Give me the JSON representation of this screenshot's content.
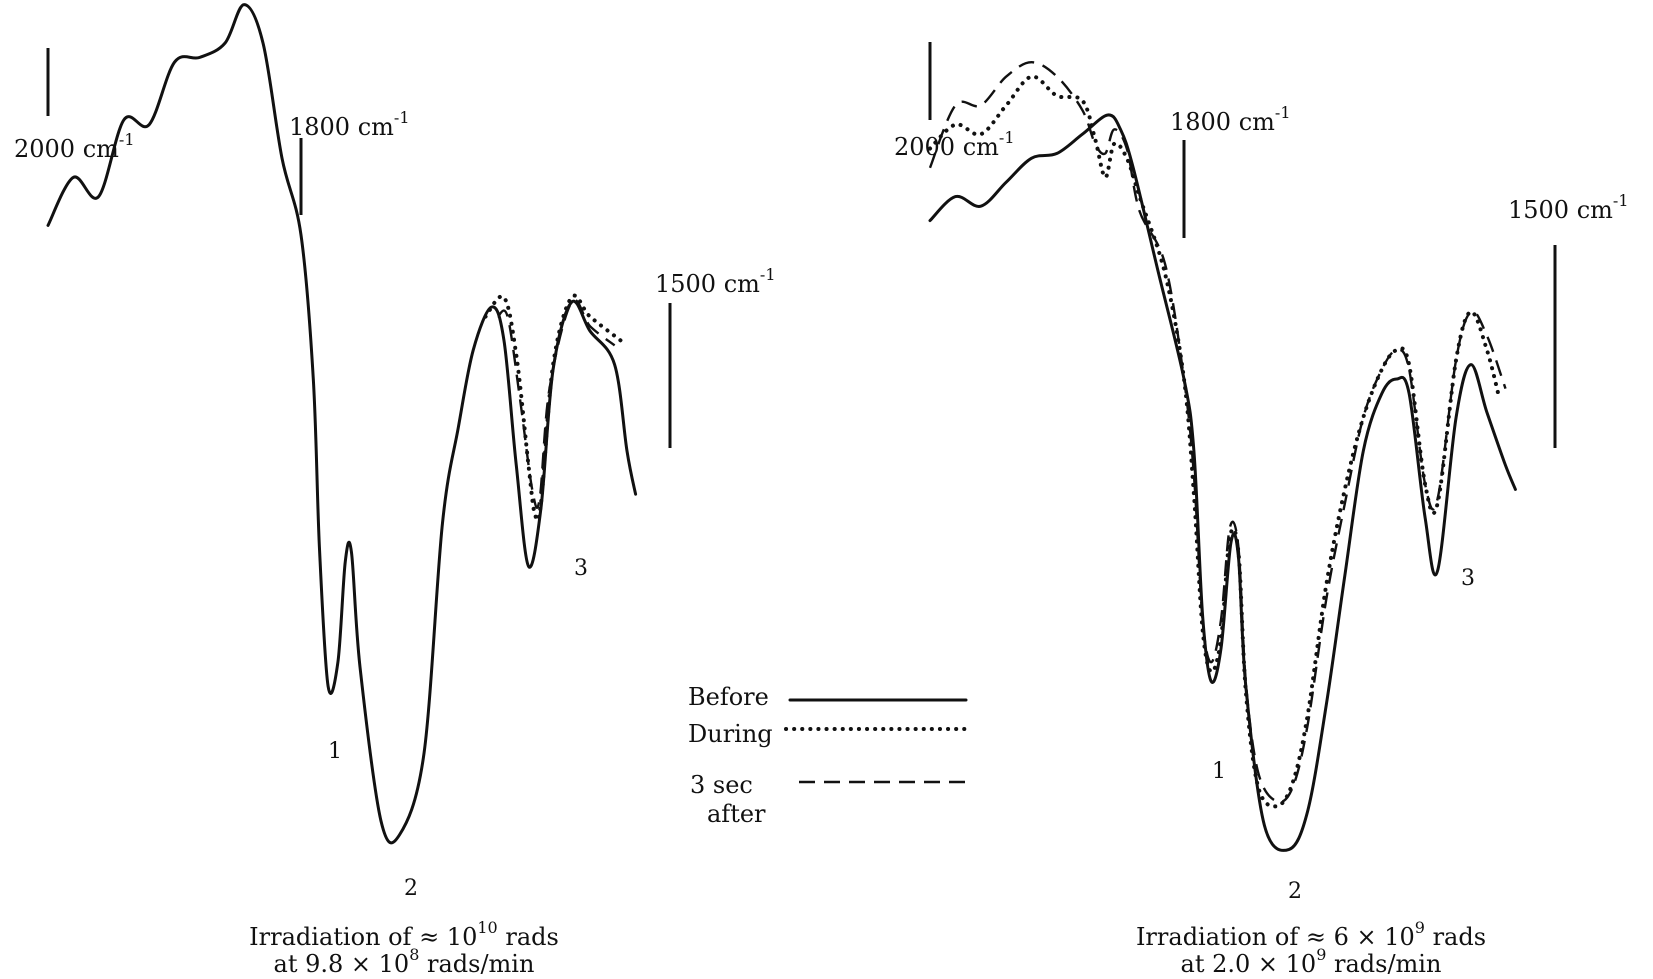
{
  "legend": {
    "before": "Before",
    "during": "During",
    "after_line1": "3 sec",
    "after_line2": "after"
  },
  "chart_data": [
    {
      "type": "line",
      "title": "",
      "xlabel": "",
      "ylabel": "",
      "x_markers": [
        {
          "base": "2000 cm",
          "exp": "-1"
        },
        {
          "base": "1800 cm",
          "exp": "-1"
        },
        {
          "base": "1500 cm",
          "exp": "-1"
        }
      ],
      "peak_labels": [
        "1",
        "2",
        "3"
      ],
      "caption": {
        "line1": {
          "pre": "Irradiation of ≈ 10",
          "exp": "10",
          "post": " rads"
        },
        "line2": {
          "pre": "at 9.8 × 10",
          "exp": "8",
          "post": " rads/min"
        }
      },
      "series": [
        {
          "name": "Before",
          "points": [
            [
              2000,
              5.2
            ],
            [
              1980,
              6.2
            ],
            [
              1960,
              5.8
            ],
            [
              1940,
              7.4
            ],
            [
              1920,
              7.3
            ],
            [
              1900,
              8.6
            ],
            [
              1880,
              8.7
            ],
            [
              1860,
              9.0
            ],
            [
              1845,
              9.8
            ],
            [
              1830,
              9.0
            ],
            [
              1815,
              6.6
            ],
            [
              1800,
              5.0
            ],
            [
              1790,
              2.0
            ],
            [
              1785,
              -1.5
            ],
            [
              1778,
              -4.4
            ],
            [
              1770,
              -3.9
            ],
            [
              1764,
              -1.8
            ],
            [
              1759,
              -1.6
            ],
            [
              1752,
              -4.0
            ],
            [
              1735,
              -7.2
            ],
            [
              1720,
              -7.5
            ],
            [
              1700,
              -5.8
            ],
            [
              1685,
              -1.0
            ],
            [
              1672,
              1.0
            ],
            [
              1660,
              2.6
            ],
            [
              1645,
              3.5
            ],
            [
              1635,
              2.8
            ],
            [
              1625,
              0.2
            ],
            [
              1615,
              -1.9
            ],
            [
              1605,
              -0.7
            ],
            [
              1595,
              2.2
            ],
            [
              1580,
              3.6
            ],
            [
              1565,
              3.0
            ],
            [
              1545,
              2.3
            ],
            [
              1535,
              0.5
            ],
            [
              1528,
              -0.4
            ]
          ]
        },
        {
          "name": "During",
          "points": [
            [
              1650,
              3.3
            ],
            [
              1635,
              3.7
            ],
            [
              1625,
              2.5
            ],
            [
              1615,
              0.2
            ],
            [
              1610,
              -0.8
            ],
            [
              1605,
              -0.6
            ],
            [
              1595,
              2.3
            ],
            [
              1580,
              3.7
            ],
            [
              1565,
              3.3
            ],
            [
              1540,
              2.8
            ]
          ]
        },
        {
          "name": "3 sec after",
          "points": [
            [
              1640,
              3.3
            ],
            [
              1632,
              3.3
            ],
            [
              1622,
              1.6
            ],
            [
              1612,
              -0.3
            ],
            [
              1606,
              -0.5
            ],
            [
              1598,
              1.8
            ],
            [
              1580,
              3.6
            ],
            [
              1565,
              3.1
            ],
            [
              1545,
              2.7
            ]
          ]
        }
      ]
    },
    {
      "type": "line",
      "title": "",
      "xlabel": "",
      "ylabel": "",
      "x_markers": [
        {
          "base": "2000 cm",
          "exp": "-1"
        },
        {
          "base": "1800  cm",
          "exp": "-1"
        },
        {
          "base": "1500 cm",
          "exp": "-1"
        }
      ],
      "peak_labels": [
        "1",
        "2",
        "3"
      ],
      "caption": {
        "line1": {
          "pre": "Irradiation of ≈  6 × 10",
          "exp": "9",
          "post": " rads"
        },
        "line2": {
          "pre": "at 2.0 × 10",
          "exp": "9",
          "post": " rads/min"
        }
      },
      "series": [
        {
          "name": "Before",
          "points": [
            [
              2000,
              5.3
            ],
            [
              1980,
              5.8
            ],
            [
              1960,
              5.6
            ],
            [
              1940,
              6.1
            ],
            [
              1920,
              6.6
            ],
            [
              1900,
              6.7
            ],
            [
              1880,
              7.1
            ],
            [
              1860,
              7.5
            ],
            [
              1850,
              7.2
            ],
            [
              1840,
              6.4
            ],
            [
              1820,
              4.2
            ],
            [
              1800,
              2.0
            ],
            [
              1792,
              0.5
            ],
            [
              1785,
              -2.9
            ],
            [
              1778,
              -4.3
            ],
            [
              1770,
              -3.6
            ],
            [
              1762,
              -1.4
            ],
            [
              1756,
              -1.7
            ],
            [
              1750,
              -4.4
            ],
            [
              1735,
              -7.3
            ],
            [
              1715,
              -7.8
            ],
            [
              1700,
              -7.0
            ],
            [
              1685,
              -4.8
            ],
            [
              1670,
              -2.1
            ],
            [
              1655,
              0.5
            ],
            [
              1640,
              1.7
            ],
            [
              1628,
              2.0
            ],
            [
              1618,
              1.7
            ],
            [
              1605,
              -0.9
            ],
            [
              1595,
              -2.0
            ],
            [
              1580,
              1.2
            ],
            [
              1568,
              2.3
            ],
            [
              1555,
              1.3
            ],
            [
              1540,
              0.2
            ],
            [
              1532,
              -0.3
            ]
          ]
        },
        {
          "name": "During",
          "points": [
            [
              2000,
              6.8
            ],
            [
              1980,
              7.3
            ],
            [
              1960,
              7.1
            ],
            [
              1940,
              7.7
            ],
            [
              1920,
              8.3
            ],
            [
              1900,
              7.9
            ],
            [
              1880,
              7.8
            ],
            [
              1870,
              7.0
            ],
            [
              1862,
              6.2
            ],
            [
              1855,
              6.9
            ],
            [
              1845,
              6.6
            ],
            [
              1835,
              5.8
            ],
            [
              1815,
              4.2
            ],
            [
              1800,
              2.0
            ],
            [
              1792,
              -0.4
            ],
            [
              1785,
              -3.2
            ],
            [
              1778,
              -4.1
            ],
            [
              1770,
              -3.4
            ],
            [
              1763,
              -1.3
            ],
            [
              1756,
              -1.6
            ],
            [
              1750,
              -4.5
            ],
            [
              1740,
              -6.5
            ],
            [
              1725,
              -6.9
            ],
            [
              1712,
              -6.4
            ],
            [
              1700,
              -5.0
            ],
            [
              1685,
              -2.3
            ],
            [
              1670,
              -0.3
            ],
            [
              1655,
              1.2
            ],
            [
              1640,
              2.2
            ],
            [
              1628,
              2.6
            ],
            [
              1618,
              2.3
            ],
            [
              1605,
              -0.2
            ],
            [
              1595,
              -0.6
            ],
            [
              1580,
              2.4
            ],
            [
              1568,
              3.4
            ],
            [
              1555,
              2.6
            ],
            [
              1545,
              1.6
            ]
          ]
        },
        {
          "name": "3 sec after",
          "points": [
            [
              2000,
              6.4
            ],
            [
              1980,
              7.7
            ],
            [
              1960,
              7.7
            ],
            [
              1940,
              8.3
            ],
            [
              1920,
              8.6
            ],
            [
              1900,
              8.3
            ],
            [
              1880,
              7.6
            ],
            [
              1870,
              6.9
            ],
            [
              1862,
              6.7
            ],
            [
              1855,
              7.2
            ],
            [
              1845,
              6.8
            ],
            [
              1835,
              5.5
            ],
            [
              1815,
              4.4
            ],
            [
              1800,
              2.0
            ],
            [
              1792,
              0.0
            ],
            [
              1785,
              -3.0
            ],
            [
              1778,
              -3.9
            ],
            [
              1770,
              -3.0
            ],
            [
              1763,
              -1.1
            ],
            [
              1756,
              -1.5
            ],
            [
              1750,
              -4.3
            ],
            [
              1740,
              -6.2
            ],
            [
              1725,
              -6.8
            ],
            [
              1712,
              -6.5
            ],
            [
              1700,
              -5.2
            ],
            [
              1685,
              -2.6
            ],
            [
              1670,
              -0.6
            ],
            [
              1655,
              1.2
            ],
            [
              1640,
              2.2
            ],
            [
              1628,
              2.6
            ],
            [
              1618,
              2.2
            ],
            [
              1605,
              -0.2
            ],
            [
              1595,
              -0.5
            ],
            [
              1580,
              2.4
            ],
            [
              1568,
              3.4
            ],
            [
              1555,
              2.9
            ],
            [
              1540,
              1.8
            ]
          ]
        }
      ]
    }
  ]
}
